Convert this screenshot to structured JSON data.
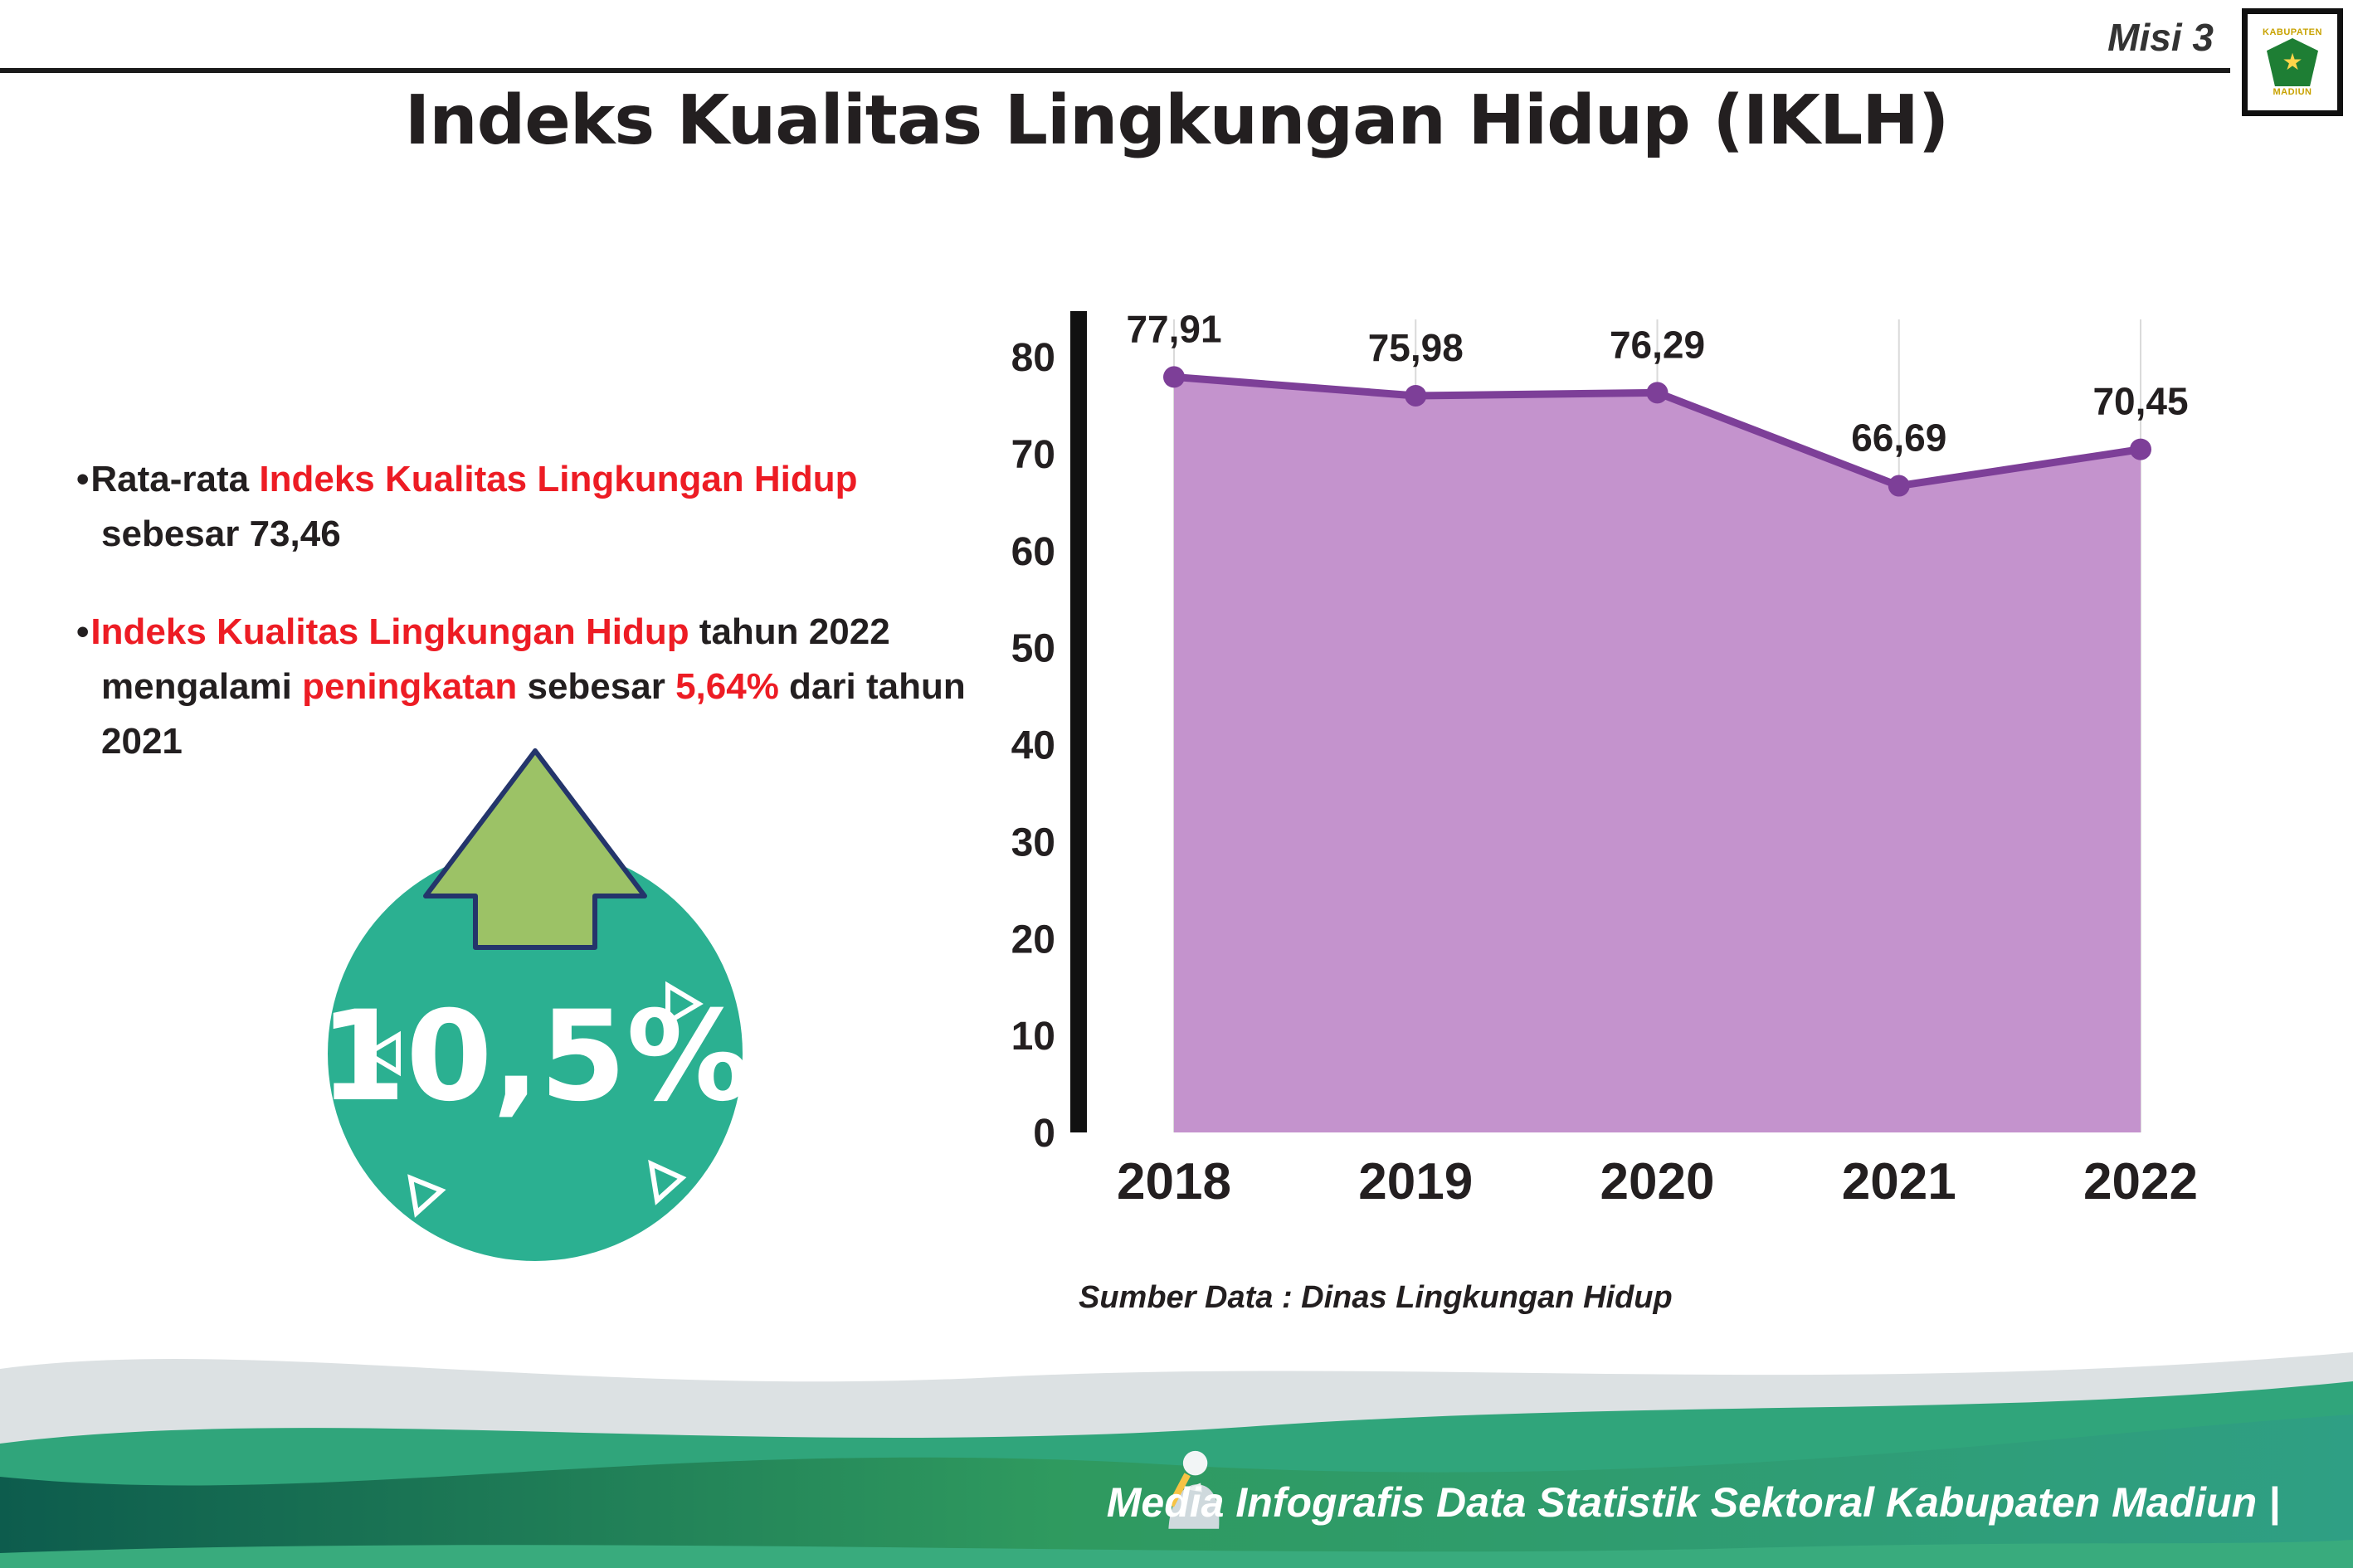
{
  "header": {
    "misi_label": "Misi 3",
    "title": "Indeks Kualitas Lingkungan Hidup (IKLH)",
    "logo": {
      "top_text": "KABUPATEN",
      "bottom_text": "MADIUN"
    }
  },
  "bullets": [
    {
      "segments": [
        {
          "text": "Rata-rata ",
          "color": "black"
        },
        {
          "text": "Indeks Kualitas Lingkungan Hidup",
          "color": "red"
        },
        {
          "text": " sebesar 73,46",
          "color": "black"
        }
      ]
    },
    {
      "segments": [
        {
          "text": "Indeks Kualitas Lingkungan Hidup",
          "color": "red"
        },
        {
          "text": " tahun 2022 mengalami ",
          "color": "black"
        },
        {
          "text": "peningkatan",
          "color": "red"
        },
        {
          "text": " sebesar ",
          "color": "black"
        },
        {
          "text": "5,64%",
          "color": "red"
        },
        {
          "text": " dari tahun 2021",
          "color": "black"
        }
      ]
    }
  ],
  "badge": {
    "value": "10,5%",
    "circle_color": "#2bb091",
    "arrow_color": "#9cc266"
  },
  "chart_data": {
    "type": "area",
    "categories": [
      "2018",
      "2019",
      "2020",
      "2021",
      "2022"
    ],
    "values": [
      77.91,
      75.98,
      76.29,
      66.69,
      70.45
    ],
    "value_labels": [
      "77,91",
      "75,98",
      "76,29",
      "66,69",
      "70,45"
    ],
    "title": "",
    "xlabel": "",
    "ylabel": "",
    "ylim": [
      0,
      80
    ],
    "ytick_step": 10,
    "grid": "vertical-light",
    "legend": "none",
    "line_color": "#7d3f98",
    "fill_color": "#c493cd",
    "source_note": "Sumber Data : Dinas Lingkungan Hidup"
  },
  "footer": {
    "credit": "Media Infografis Data Statistik Sektoral Kabupaten Madiun |"
  },
  "colors": {
    "accent_red": "#ed1c24",
    "text": "#231f20",
    "badge_teal": "#2bb091",
    "chart_line": "#7d3f98",
    "chart_fill": "#c493cd",
    "wave_dark": "#0d5c4d",
    "wave_green": "#2f9a5f",
    "wave_teal": "#30a57b"
  }
}
